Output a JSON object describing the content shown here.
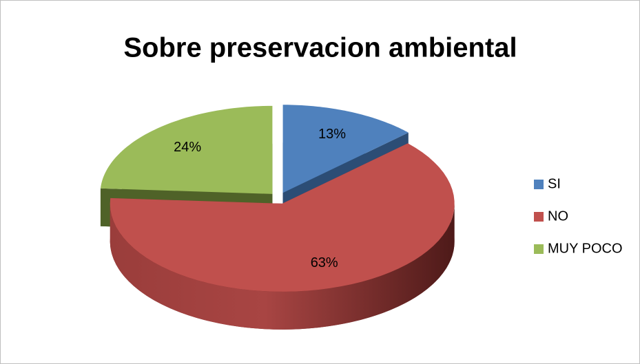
{
  "chart_data": {
    "type": "pie",
    "title": "Sobre preservacion ambiental",
    "categories": [
      "SI",
      "NO",
      "MUY POCO"
    ],
    "values": [
      13,
      63,
      24
    ],
    "value_labels": [
      "13%",
      "63%",
      "24%"
    ],
    "colors": [
      "#4f81bd",
      "#c0504d",
      "#9bbb59"
    ],
    "legend": "right"
  }
}
